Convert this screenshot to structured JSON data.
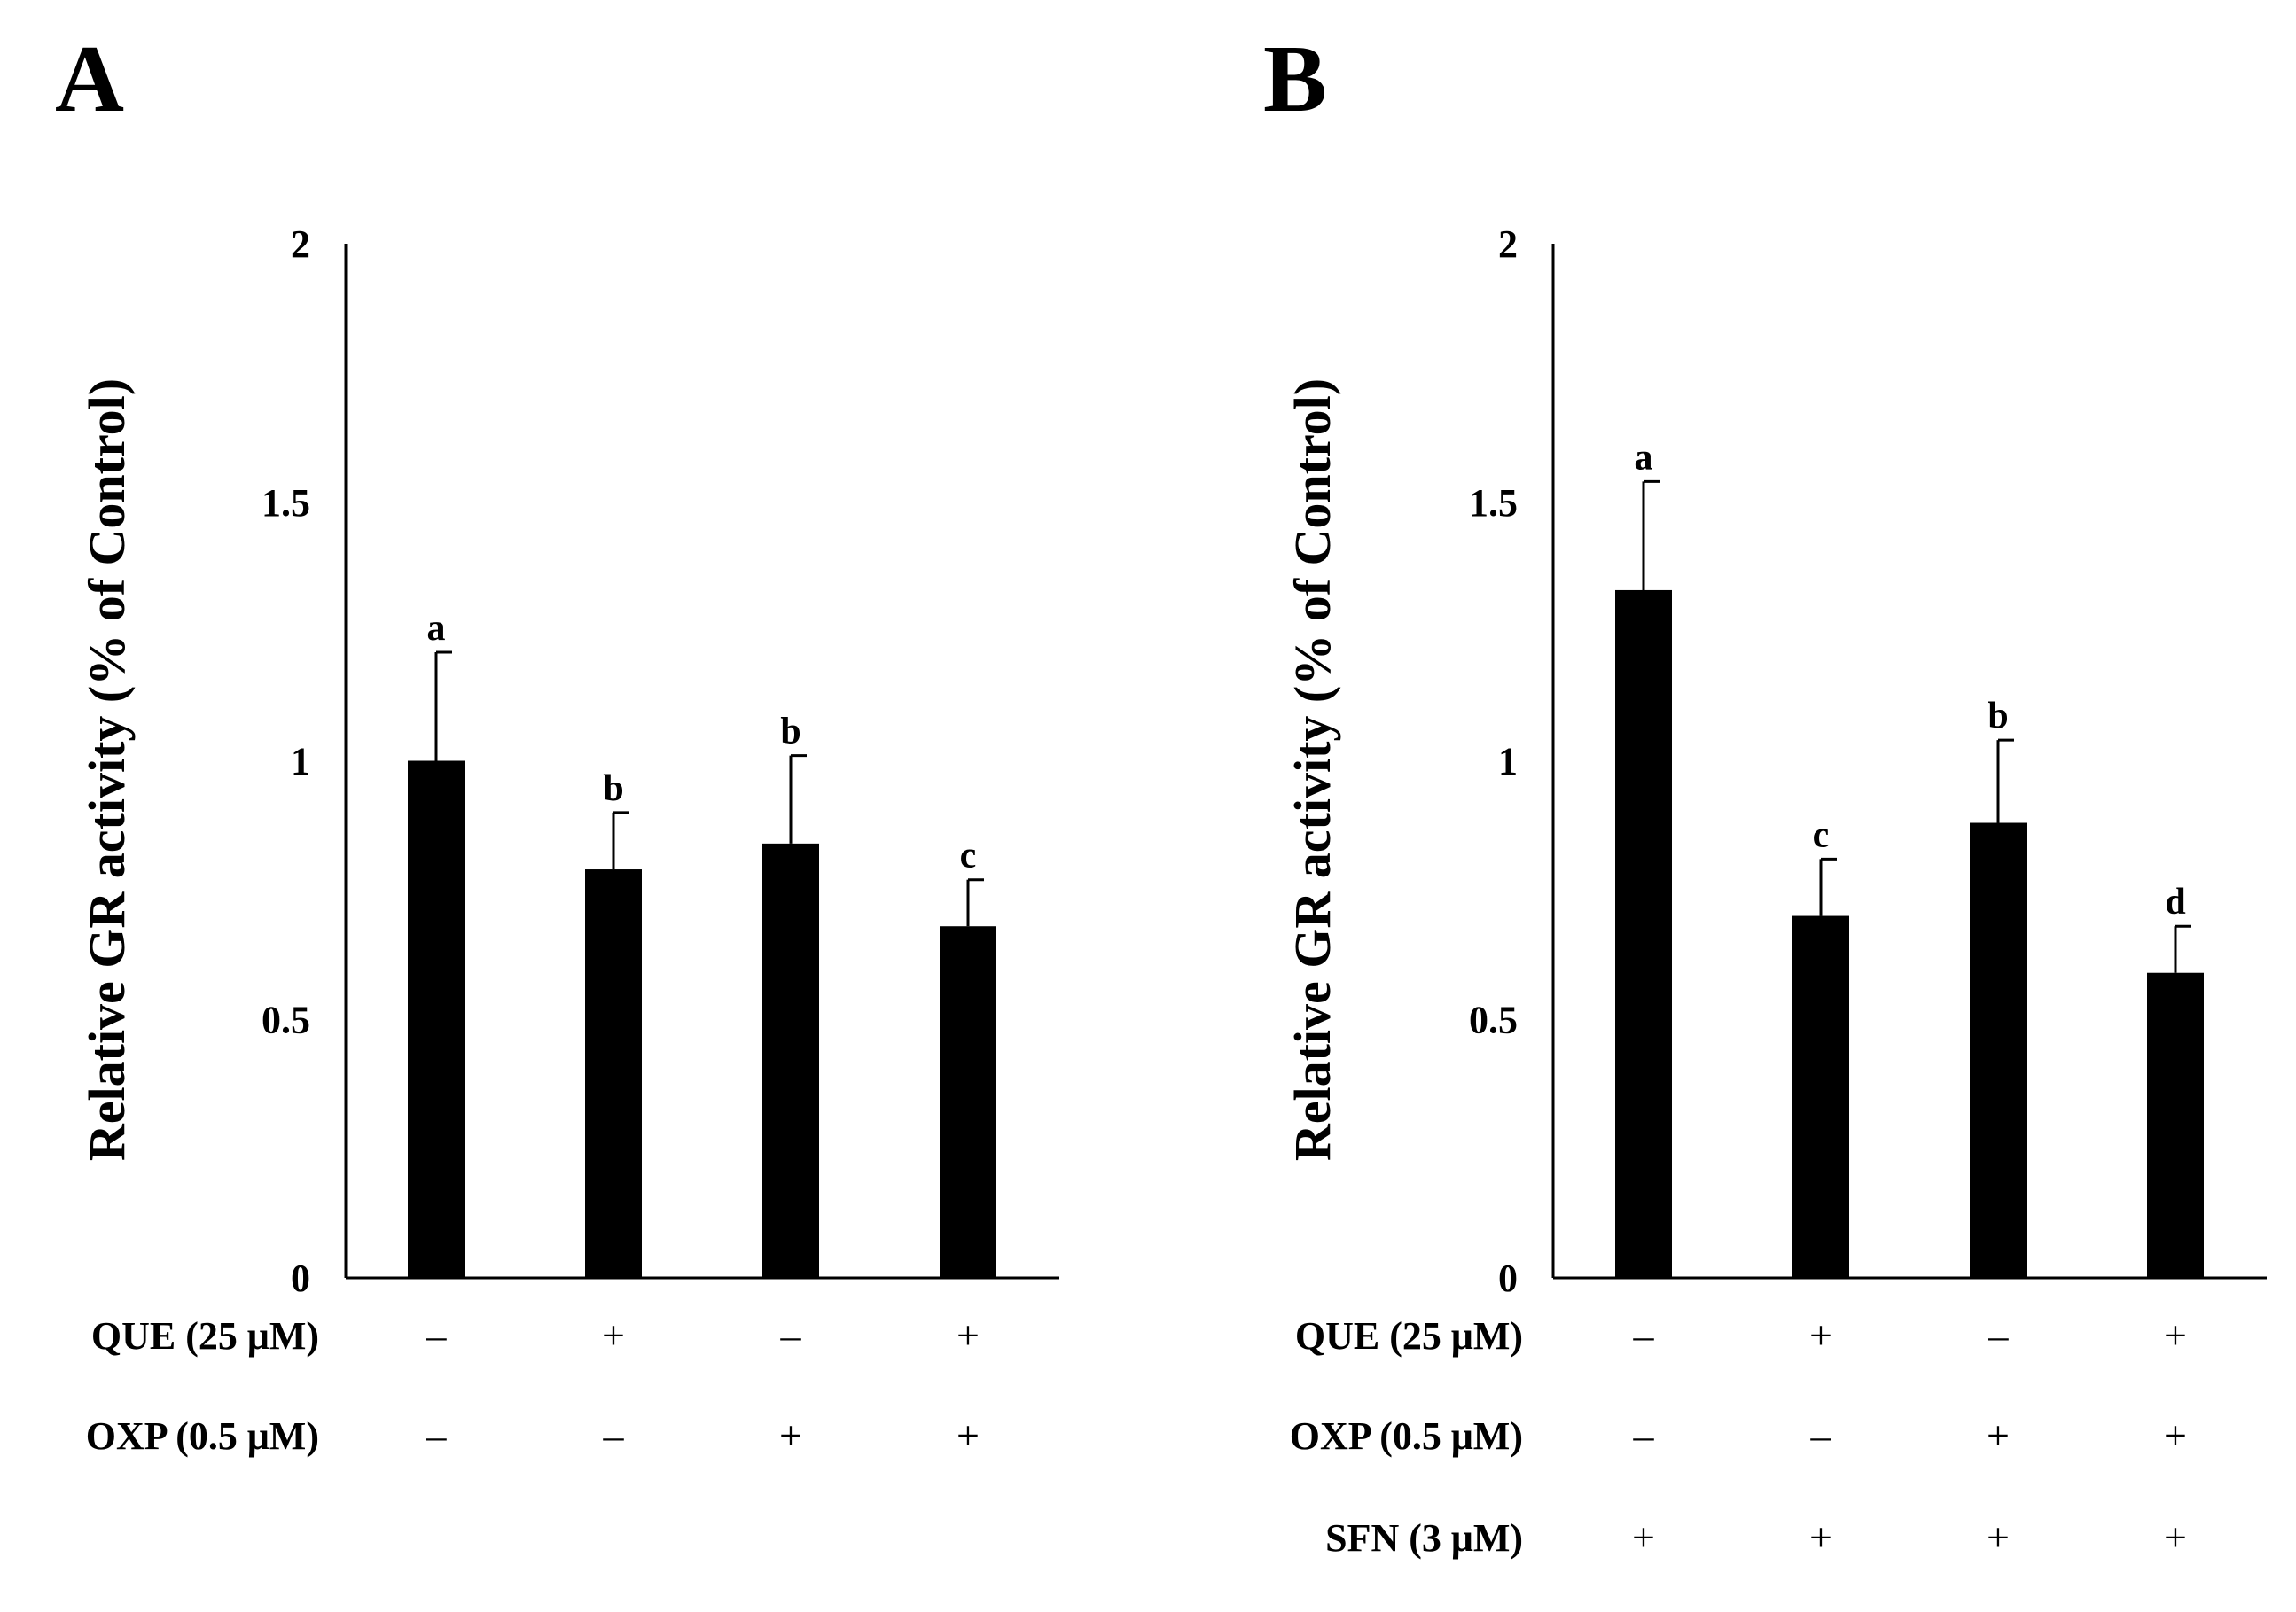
{
  "chart_data": [
    {
      "type": "bar",
      "panel": "A",
      "ylabel": "Relative GR activity (% of Control)",
      "ylim": [
        0,
        2
      ],
      "yticks": [
        "0",
        "0.5",
        "1",
        "1.5",
        "2"
      ],
      "ytick_values": [
        0,
        0.5,
        1,
        1.5,
        2
      ],
      "values": [
        1.0,
        0.79,
        0.84,
        0.68
      ],
      "errors": [
        0.21,
        0.11,
        0.17,
        0.09
      ],
      "significance": [
        "a",
        "b",
        "b",
        "c"
      ],
      "conditions": [
        {
          "label": "QUE (25 μM)",
          "signs": [
            "–",
            "+",
            "–",
            "+"
          ]
        },
        {
          "label": "OXP (0.5 μM)",
          "signs": [
            "–",
            "–",
            "+",
            "+"
          ]
        }
      ]
    },
    {
      "type": "bar",
      "panel": "B",
      "ylabel": "Relative GR activity (% of Control)",
      "ylim": [
        0,
        2
      ],
      "yticks": [
        "0",
        "0.5",
        "1",
        "1.5",
        "2"
      ],
      "ytick_values": [
        0,
        0.5,
        1,
        1.5,
        2
      ],
      "values": [
        1.33,
        0.7,
        0.88,
        0.59
      ],
      "errors": [
        0.21,
        0.11,
        0.16,
        0.09
      ],
      "significance": [
        "a",
        "c",
        "b",
        "d"
      ],
      "conditions": [
        {
          "label": "QUE (25 μM)",
          "signs": [
            "–",
            "+",
            "–",
            "+"
          ]
        },
        {
          "label": "OXP (0.5 μM)",
          "signs": [
            "–",
            "–",
            "+",
            "+"
          ]
        },
        {
          "label": "SFN (3 μM)",
          "signs": [
            "+",
            "+",
            "+",
            "+"
          ]
        }
      ]
    }
  ]
}
